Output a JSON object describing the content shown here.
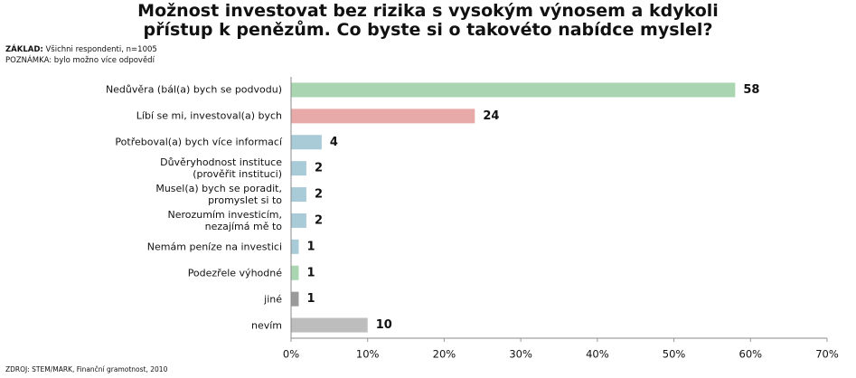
{
  "chart_data": {
    "type": "hbar",
    "title": "Možnost investovat bez rizika s vysokým výnosem a kdykoli\npřístup k penězům. Co byste si o takovéto nabídce myslel?",
    "base_label": "ZÁKLAD:",
    "base_text": "Všichni respondenti, n=1005",
    "note": "POZNÁMKA: bylo možno více odpovědí",
    "source": "ZDROJ: STEM/MARK, Finanční gramotnost, 2010",
    "categories": [
      "Nedůvěra (bál(a) bych se podvodu)",
      "Líbí se mi, investoval(a) bych",
      "Potřeboval(a) bych více informací",
      "Důvěryhodnost instituce\n(prověřit instituci)",
      "Musel(a) bych se poradit,\npromyslet si to",
      "Nerozumím investicím,\nnezajímá mě to",
      "Nemám peníze na investici",
      "Podezřele výhodné",
      "jiné",
      "nevím"
    ],
    "values": [
      58,
      24,
      4,
      2,
      2,
      2,
      1,
      1,
      1,
      10
    ],
    "colors": [
      "#a9d6b0",
      "#e8aaa9",
      "#a9cbd7",
      "#a9cbd7",
      "#a9cbd7",
      "#a9cbd7",
      "#a9cbd7",
      "#a9d6b0",
      "#9a9a9a",
      "#bdbdbd"
    ],
    "xlim": [
      0,
      70
    ],
    "xticks": [
      {
        "value": 0,
        "label": "0%"
      },
      {
        "value": 10,
        "label": "10%"
      },
      {
        "value": 20,
        "label": "20%"
      },
      {
        "value": 30,
        "label": "30%"
      },
      {
        "value": 40,
        "label": "40%"
      },
      {
        "value": 50,
        "label": "50%"
      },
      {
        "value": 60,
        "label": "60%"
      },
      {
        "value": 70,
        "label": "70%"
      }
    ]
  }
}
